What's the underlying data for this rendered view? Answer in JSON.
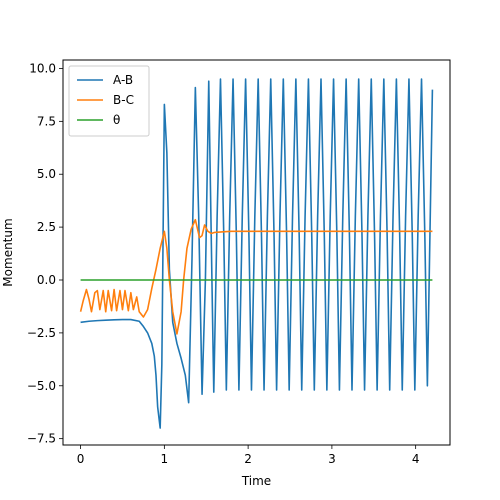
{
  "chart_data": {
    "type": "line",
    "title": "",
    "xlabel": "Time",
    "ylabel": "Momentum",
    "xlim": [
      -0.21,
      4.41
    ],
    "ylim": [
      -7.8,
      10.4
    ],
    "xticks": [
      0,
      1,
      2,
      3,
      4
    ],
    "xtick_labels": [
      "0",
      "1",
      "2",
      "3",
      "4"
    ],
    "yticks": [
      -7.5,
      -5.0,
      -2.5,
      0.0,
      2.5,
      5.0,
      7.5,
      10.0
    ],
    "ytick_labels": [
      "−7.5",
      "−5.0",
      "−2.5",
      "0.0",
      "2.5",
      "5.0",
      "7.5",
      "10.0"
    ],
    "grid": false,
    "legend_position": "top-left",
    "series": [
      {
        "name": "A-B",
        "color": "#1f77b4",
        "x": [
          0.0,
          0.1,
          0.2,
          0.3,
          0.4,
          0.5,
          0.6,
          0.7,
          0.75,
          0.8,
          0.85,
          0.88,
          0.9,
          0.92,
          0.95,
          0.97,
          1.0,
          1.03,
          1.06,
          1.1,
          1.15,
          1.2,
          1.25,
          1.29,
          1.33,
          1.37,
          1.41,
          1.45,
          1.49,
          1.53,
          1.57,
          1.59,
          1.63,
          1.67,
          1.71,
          1.74,
          1.78,
          1.82,
          1.86,
          1.89,
          1.93,
          1.97,
          2.01,
          2.04,
          2.08,
          2.12,
          2.16,
          2.19,
          2.23,
          2.27,
          2.31,
          2.34,
          2.38,
          2.42,
          2.46,
          2.49,
          2.53,
          2.57,
          2.61,
          2.64,
          2.68,
          2.72,
          2.76,
          2.79,
          2.83,
          2.87,
          2.91,
          2.94,
          2.98,
          3.02,
          3.06,
          3.09,
          3.13,
          3.17,
          3.21,
          3.24,
          3.28,
          3.32,
          3.36,
          3.39,
          3.43,
          3.47,
          3.51,
          3.54,
          3.58,
          3.62,
          3.66,
          3.69,
          3.73,
          3.77,
          3.81,
          3.84,
          3.88,
          3.92,
          3.96,
          3.99,
          4.03,
          4.07,
          4.11,
          4.14,
          4.2
        ],
        "y": [
          -2.0,
          -1.95,
          -1.92,
          -1.9,
          -1.88,
          -1.87,
          -1.87,
          -1.95,
          -2.2,
          -2.5,
          -3.0,
          -3.6,
          -4.5,
          -6.0,
          -7.0,
          -4.0,
          8.3,
          6.0,
          0.5,
          -2.0,
          -3.0,
          -3.7,
          -4.5,
          -5.8,
          1.0,
          9.1,
          3.0,
          -5.4,
          0.0,
          9.4,
          -0.5,
          -5.3,
          3.0,
          9.5,
          2.0,
          -5.2,
          3.0,
          9.5,
          2.0,
          -5.2,
          3.0,
          9.5,
          2.0,
          -5.2,
          3.0,
          9.5,
          2.0,
          -5.2,
          3.0,
          9.5,
          2.0,
          -5.2,
          3.0,
          9.5,
          2.0,
          -5.2,
          3.0,
          9.5,
          2.0,
          -5.2,
          3.0,
          9.5,
          2.0,
          -5.2,
          3.0,
          9.5,
          2.0,
          -5.2,
          3.0,
          9.5,
          2.0,
          -5.2,
          3.0,
          9.5,
          2.0,
          -5.2,
          3.0,
          9.5,
          2.0,
          -5.2,
          3.0,
          9.5,
          2.0,
          -5.2,
          3.0,
          9.5,
          2.0,
          -5.2,
          3.0,
          9.5,
          2.0,
          -5.2,
          3.0,
          9.5,
          2.0,
          -5.2,
          3.0,
          9.5,
          2.0,
          -5.0,
          9.0
        ]
      },
      {
        "name": "B-C",
        "color": "#ff7f0e",
        "x": [
          0.0,
          0.03,
          0.07,
          0.1,
          0.13,
          0.17,
          0.2,
          0.23,
          0.27,
          0.3,
          0.33,
          0.37,
          0.4,
          0.43,
          0.47,
          0.5,
          0.53,
          0.57,
          0.6,
          0.63,
          0.67,
          0.7,
          0.75,
          0.8,
          0.85,
          0.9,
          0.95,
          1.0,
          1.03,
          1.06,
          1.1,
          1.15,
          1.2,
          1.23,
          1.27,
          1.32,
          1.37,
          1.42,
          1.45,
          1.48,
          1.52,
          1.56,
          1.6,
          1.7,
          1.8,
          2.0,
          2.5,
          3.0,
          3.5,
          4.0,
          4.2
        ],
        "y": [
          -1.5,
          -1.0,
          -0.45,
          -0.9,
          -1.5,
          -0.6,
          -0.5,
          -1.4,
          -0.5,
          -1.5,
          -0.5,
          -1.45,
          -0.45,
          -1.45,
          -0.5,
          -1.4,
          -0.5,
          -1.45,
          -0.6,
          -1.4,
          -0.8,
          -1.5,
          -1.75,
          -1.4,
          -0.4,
          0.5,
          1.5,
          2.3,
          1.5,
          0.0,
          -1.5,
          -2.55,
          -1.5,
          0.0,
          1.5,
          2.4,
          2.85,
          2.0,
          2.1,
          2.6,
          2.3,
          2.2,
          2.25,
          2.28,
          2.3,
          2.3,
          2.3,
          2.3,
          2.3,
          2.3,
          2.3
        ]
      },
      {
        "name": "θ",
        "color": "#2ca02c",
        "x": [
          0.0,
          4.2
        ],
        "y": [
          0.0,
          0.0
        ]
      }
    ]
  }
}
